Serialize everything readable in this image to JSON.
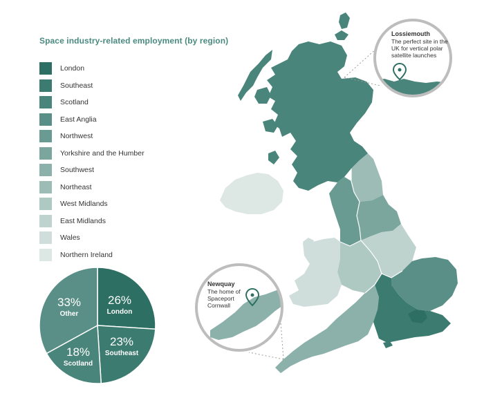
{
  "title": "Space industry-related employment (by region)",
  "legend": [
    {
      "label": "London",
      "color": "#2e6f63"
    },
    {
      "label": "Southeast",
      "color": "#3c7b70"
    },
    {
      "label": "Scotland",
      "color": "#4a857b"
    },
    {
      "label": "East Anglia",
      "color": "#598f86"
    },
    {
      "label": "Northwest",
      "color": "#6a9b92"
    },
    {
      "label": "Yorkshire and the Humber",
      "color": "#7aa69e"
    },
    {
      "label": "Southwest",
      "color": "#8bb1aa"
    },
    {
      "label": "Northeast",
      "color": "#9dbcb6"
    },
    {
      "label": "West Midlands",
      "color": "#aec8c2"
    },
    {
      "label": "East Midlands",
      "color": "#bfd3ce"
    },
    {
      "label": "Wales",
      "color": "#cfdeda"
    },
    {
      "label": "Northern Ireland",
      "color": "#dde7e4"
    }
  ],
  "chart_data": {
    "type": "pie",
    "slices": [
      {
        "pct": "26%",
        "label": "London",
        "value": 26,
        "color": "#2e6f63"
      },
      {
        "pct": "23%",
        "label": "Southeast",
        "value": 23,
        "color": "#3c7b70"
      },
      {
        "pct": "18%",
        "label": "Scotland",
        "value": 18,
        "color": "#4a857b"
      },
      {
        "pct": "33%",
        "label": "Other",
        "value": 33,
        "color": "#598f86"
      }
    ]
  },
  "callouts": {
    "lossiemouth": {
      "name": "Lossiemouth",
      "lines": [
        "The perfect site in the",
        "UK for vertical polar",
        "satellite launches"
      ]
    },
    "newquay": {
      "name": "Newquay",
      "lines": [
        "The home of",
        "Spaceport",
        "Cornwall"
      ]
    }
  }
}
